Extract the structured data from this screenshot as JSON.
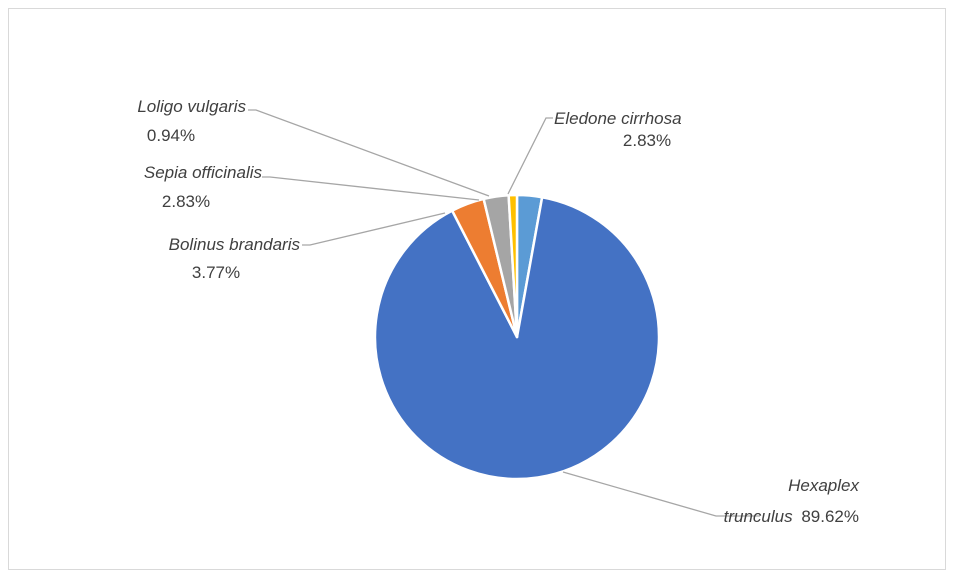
{
  "chart_data": {
    "type": "pie",
    "title": "",
    "slices": [
      {
        "label": "Eledone cirrhosa",
        "value": 2.83,
        "value_label": "2.83%",
        "color": "#5b9bd5"
      },
      {
        "label": "Hexaplex trunculus",
        "label_lines": [
          "Hexaplex",
          "trunculus"
        ],
        "value": 89.62,
        "value_label": "89.62%",
        "color": "#4472c4"
      },
      {
        "label": "Bolinus brandaris",
        "value": 3.77,
        "value_label": "3.77%",
        "color": "#ed7d31"
      },
      {
        "label": "Sepia officinalis",
        "value": 2.83,
        "value_label": "2.83%",
        "color": "#a5a5a5"
      },
      {
        "label": "Loligo vulgaris",
        "value": 0.94,
        "value_label": "0.94%",
        "color": "#ffc000"
      }
    ],
    "legend": "none",
    "label_style": "callouts with leader lines"
  }
}
